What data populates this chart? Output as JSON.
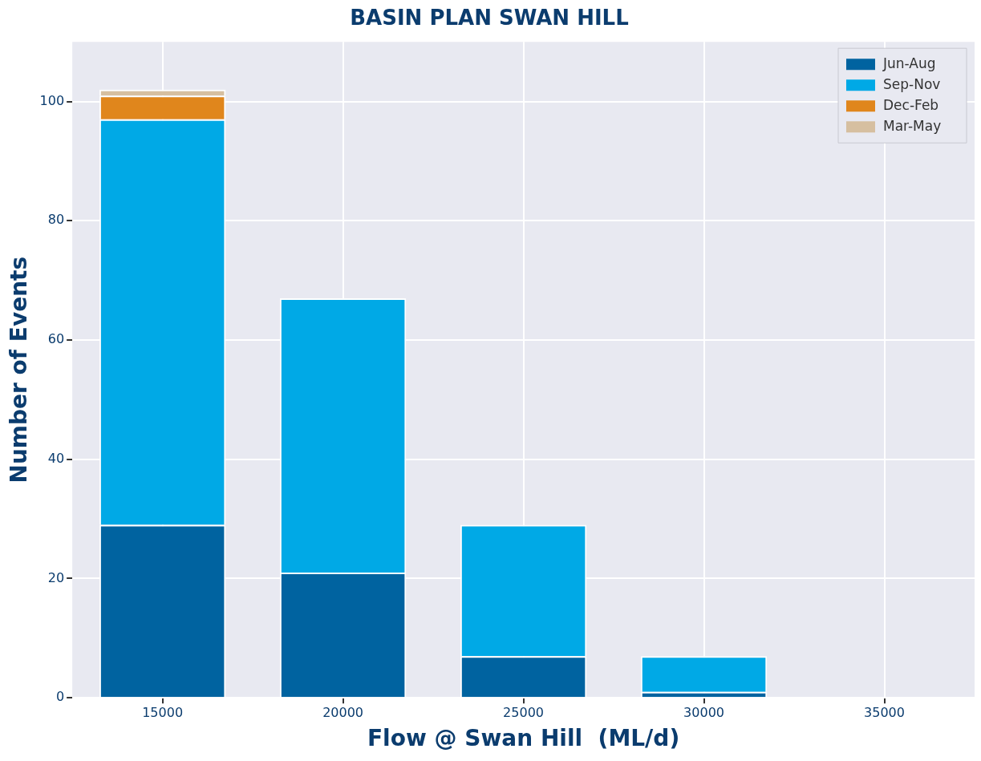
{
  "chart_data": {
    "type": "bar",
    "title": "BASIN PLAN SWAN HILL",
    "xlabel": "Flow @ Swan Hill  (ML/d)",
    "ylabel": "Number of Events",
    "categories": [
      "15000",
      "20000",
      "25000",
      "30000",
      "35000"
    ],
    "series": [
      {
        "name": "Jun-Aug",
        "color": "#0063a0",
        "values": [
          29,
          21,
          7,
          1,
          0
        ]
      },
      {
        "name": "Sep-Nov",
        "color": "#00a9e6",
        "values": [
          68,
          46,
          22,
          6,
          0
        ]
      },
      {
        "name": "Dec-Feb",
        "color": "#e0861c",
        "values": [
          4,
          0,
          0,
          0,
          0
        ]
      },
      {
        "name": "Mar-May",
        "color": "#d6bfa0",
        "values": [
          1,
          0,
          0,
          0,
          0
        ]
      }
    ],
    "stacked": true,
    "ylim": [
      0,
      110
    ],
    "yticks": [
      0,
      20,
      40,
      60,
      80,
      100
    ],
    "grid": true,
    "legend": "top right"
  }
}
